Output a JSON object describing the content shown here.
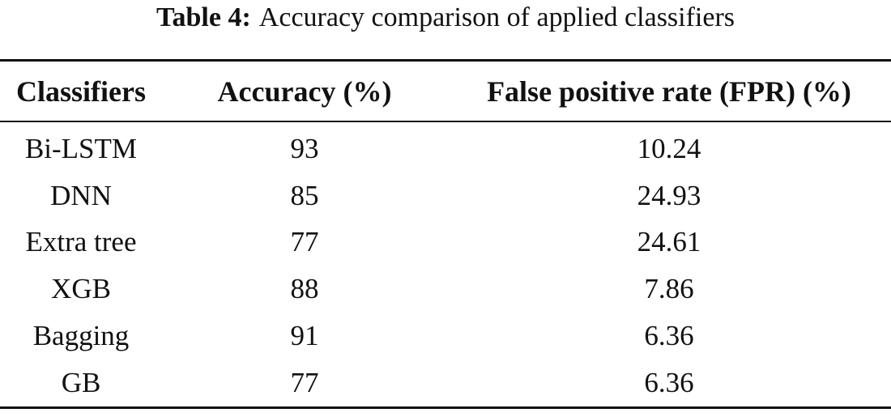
{
  "table": {
    "caption_label": "Table 4:",
    "caption": "Accuracy comparison of applied classifiers",
    "columns": [
      "Classifiers",
      "Accuracy (%)",
      "False positive rate (FPR) (%)"
    ],
    "rows": [
      [
        "Bi-LSTM",
        93,
        10.24
      ],
      [
        "DNN",
        85,
        24.93
      ],
      [
        "Extra tree",
        77,
        24.61
      ],
      [
        "XGB",
        88,
        7.86
      ],
      [
        "Bagging",
        91,
        6.36
      ],
      [
        "GB",
        77,
        6.36
      ]
    ]
  }
}
